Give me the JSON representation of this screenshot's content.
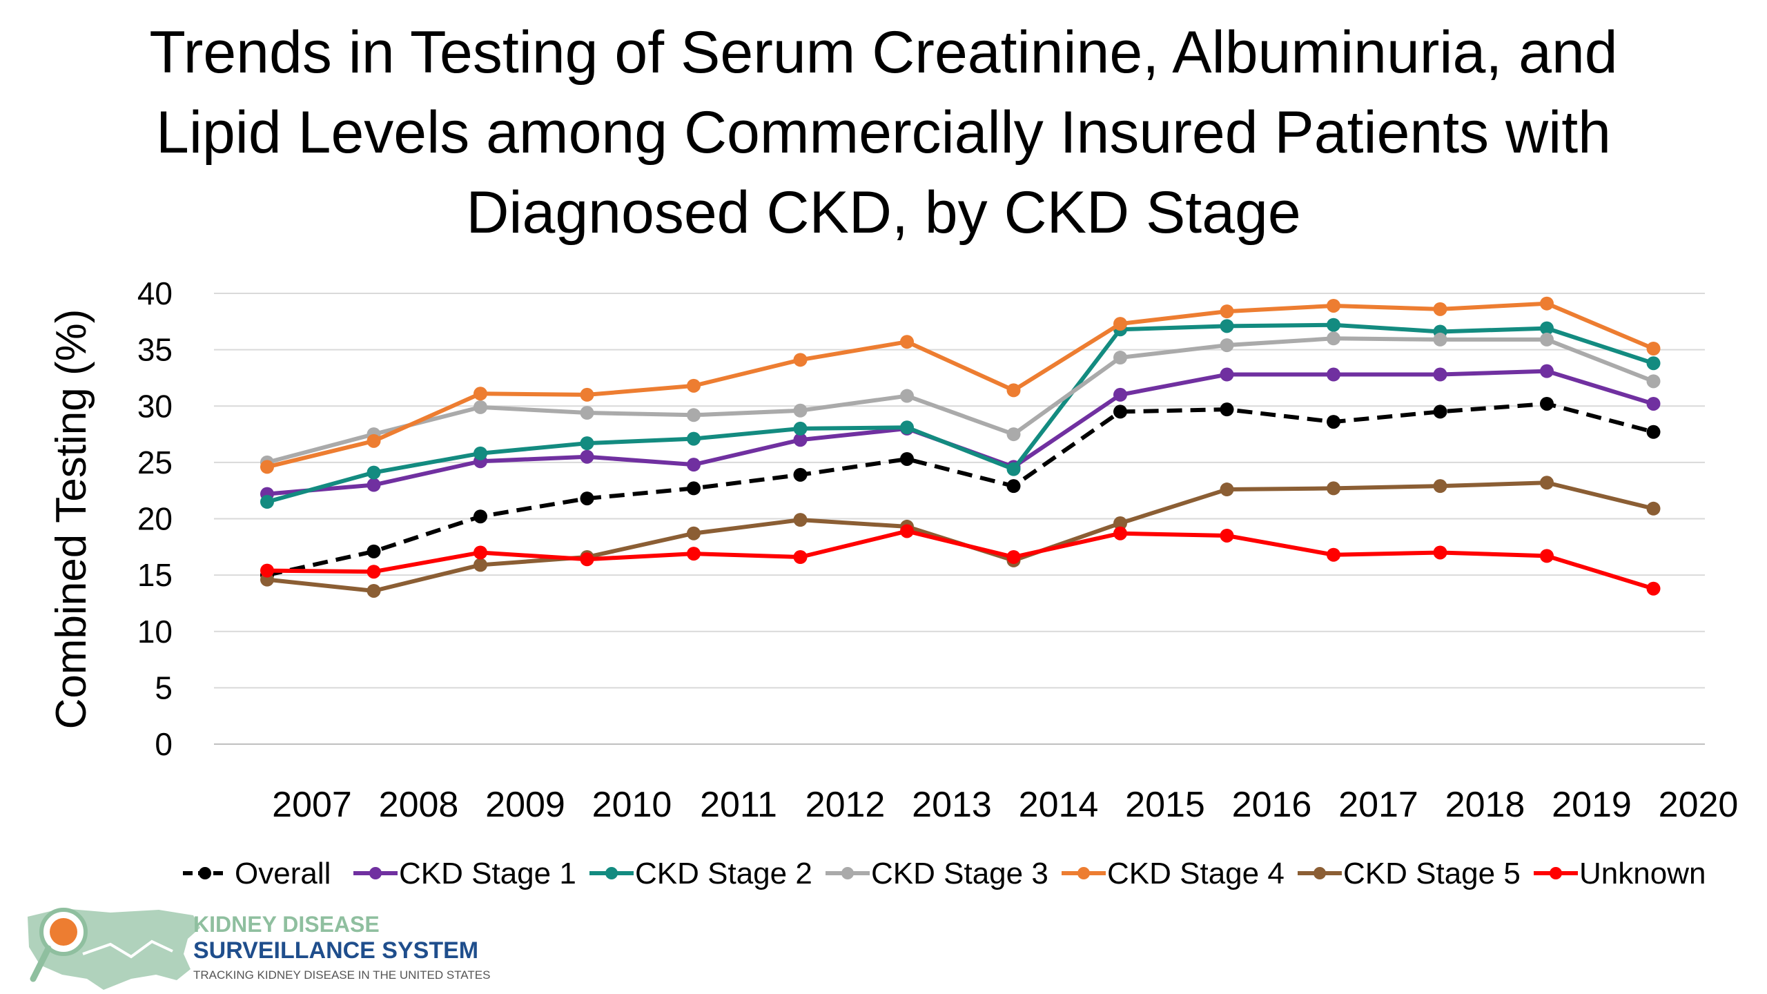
{
  "page": {
    "title_lines": [
      "Trends in Testing of Serum Creatinine, Albuminuria, and",
      "Lipid Levels among Commercially Insured Patients with",
      "Diagnosed CKD, by CKD Stage"
    ]
  },
  "chart_data": {
    "type": "line",
    "title": "Trends in Testing of Serum Creatinine, Albuminuria, and Lipid Levels among Commercially Insured Patients with Diagnosed CKD, by CKD Stage",
    "xlabel": "",
    "ylabel": "Combined Testing (%)",
    "ylim": [
      0,
      40
    ],
    "yticks": [
      0,
      5,
      10,
      15,
      20,
      25,
      30,
      35,
      40
    ],
    "categories": [
      "2007",
      "2008",
      "2009",
      "2010",
      "2011",
      "2012",
      "2013",
      "2014",
      "2015",
      "2016",
      "2017",
      "2018",
      "2019",
      "2020"
    ],
    "grid": true,
    "legend_position": "bottom",
    "series": [
      {
        "name": "Overall",
        "color": "#000000",
        "dashed": true,
        "values": [
          15.0,
          17.1,
          20.2,
          21.8,
          22.7,
          23.9,
          25.3,
          22.9,
          29.5,
          29.7,
          28.6,
          29.5,
          30.2,
          27.7
        ]
      },
      {
        "name": "CKD Stage 1",
        "color": "#7030A0",
        "dashed": false,
        "values": [
          22.2,
          23.0,
          25.1,
          25.5,
          24.8,
          27.0,
          28.0,
          24.6,
          31.0,
          32.8,
          32.8,
          32.8,
          33.1,
          30.2
        ]
      },
      {
        "name": "CKD Stage 2",
        "color": "#138B80",
        "dashed": false,
        "values": [
          21.5,
          24.1,
          25.8,
          26.7,
          27.1,
          28.0,
          28.1,
          24.4,
          36.8,
          37.1,
          37.2,
          36.6,
          36.9,
          33.8
        ]
      },
      {
        "name": "CKD Stage 3",
        "color": "#AAAAAA",
        "dashed": false,
        "values": [
          25.0,
          27.5,
          29.9,
          29.4,
          29.2,
          29.6,
          30.9,
          27.5,
          34.3,
          35.4,
          36.0,
          35.9,
          35.9,
          32.2
        ]
      },
      {
        "name": "CKD Stage 4",
        "color": "#ED7D31",
        "dashed": false,
        "values": [
          24.6,
          26.9,
          31.1,
          31.0,
          31.8,
          34.1,
          35.7,
          31.4,
          37.3,
          38.4,
          38.9,
          38.6,
          39.1,
          35.1
        ]
      },
      {
        "name": "CKD Stage 5",
        "color": "#8B5E34",
        "dashed": false,
        "values": [
          14.6,
          13.6,
          15.9,
          16.6,
          18.7,
          19.9,
          19.3,
          16.3,
          19.6,
          22.6,
          22.7,
          22.9,
          23.2,
          20.9
        ]
      },
      {
        "name": "Unknown",
        "color": "#FF0000",
        "dashed": false,
        "values": [
          15.4,
          15.3,
          17.0,
          16.4,
          16.9,
          16.6,
          18.9,
          16.6,
          18.7,
          18.5,
          16.8,
          17.0,
          16.7,
          13.8
        ]
      }
    ]
  },
  "logo": {
    "line1": "KIDNEY DISEASE",
    "line2": "SURVEILLANCE SYSTEM",
    "tagline": "TRACKING KIDNEY DISEASE IN THE UNITED STATES",
    "colors": {
      "primary": "#1F4E8C",
      "map": "#8FBF9F",
      "accent": "#ED7D31"
    }
  }
}
